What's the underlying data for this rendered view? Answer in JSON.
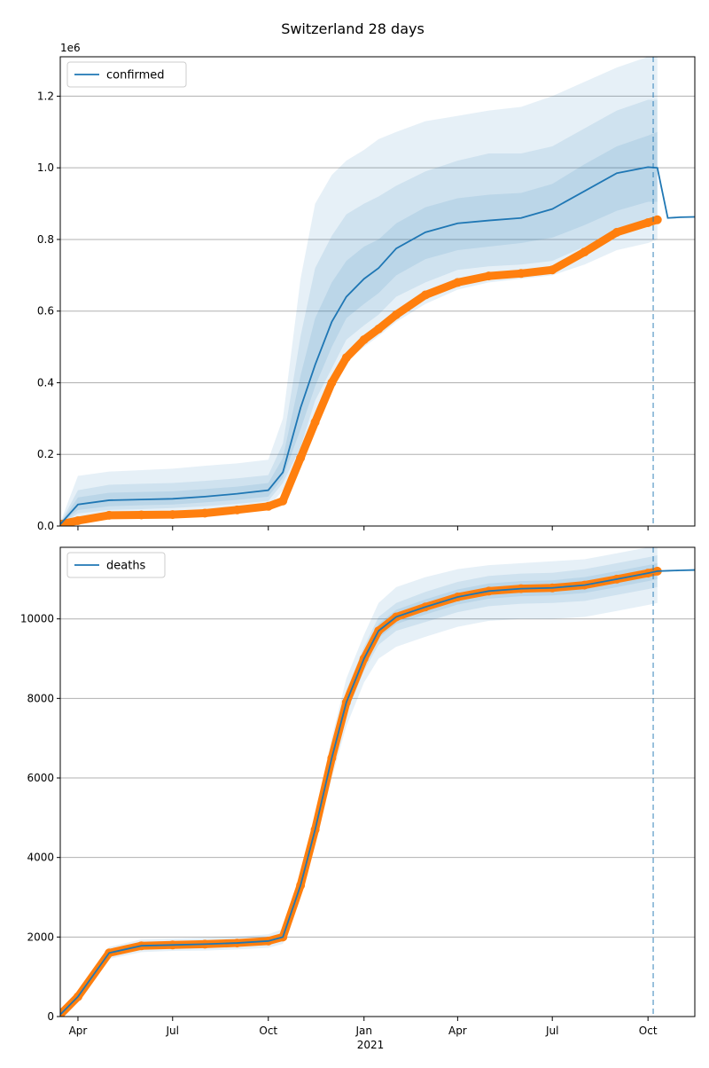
{
  "chart_data": {
    "title": "Switzerland 28 days",
    "x_dates": [
      "2020-03-15",
      "2020-04-01",
      "2020-05-01",
      "2020-06-01",
      "2020-07-01",
      "2020-08-01",
      "2020-09-01",
      "2020-10-01",
      "2020-10-15",
      "2020-11-01",
      "2020-11-15",
      "2020-12-01",
      "2020-12-15",
      "2021-01-01",
      "2021-01-15",
      "2021-02-01",
      "2021-03-01",
      "2021-04-01",
      "2021-05-01",
      "2021-06-01",
      "2021-07-01",
      "2021-08-01",
      "2021-09-01",
      "2021-10-01",
      "2021-10-10",
      "2021-10-20",
      "2021-11-01",
      "2021-11-15"
    ],
    "x_ticks": [
      {
        "date": "2020-04-01",
        "label": "Apr"
      },
      {
        "date": "2020-07-01",
        "label": "Jul"
      },
      {
        "date": "2020-10-01",
        "label": "Oct"
      },
      {
        "date": "2021-01-01",
        "label": "Jan"
      },
      {
        "date": "2021-04-01",
        "label": "Apr"
      },
      {
        "date": "2021-07-01",
        "label": "Jul"
      },
      {
        "date": "2021-10-01",
        "label": "Oct"
      }
    ],
    "x_year_label": "2021",
    "xlim": [
      "2020-03-15",
      "2021-11-15"
    ],
    "forecast_date": "2021-10-06",
    "colors": {
      "model": "#1f77b4",
      "observed": "#ff7f0e",
      "band": "#1f77b4",
      "grid": "#b0b0b0"
    },
    "panels": [
      {
        "type": "line",
        "legend": "confirmed",
        "legend_position": "upper-left",
        "scale_label": "1e6",
        "ylim": [
          0,
          1.31
        ],
        "yticks": [
          {
            "value": 0,
            "label": "0.0"
          },
          {
            "value": 0.2,
            "label": "0.2"
          },
          {
            "value": 0.4,
            "label": "0.4"
          },
          {
            "value": 0.6,
            "label": "0.6"
          },
          {
            "value": 0.8,
            "label": "0.8"
          },
          {
            "value": 1.0,
            "label": "1.0"
          },
          {
            "value": 1.2,
            "label": "1.2"
          }
        ],
        "observed": [
          0.005,
          0.015,
          0.03,
          0.031,
          0.032,
          0.036,
          0.045,
          0.055,
          0.07,
          0.19,
          0.29,
          0.4,
          0.47,
          0.52,
          0.55,
          0.59,
          0.645,
          0.68,
          0.698,
          0.705,
          0.715,
          0.765,
          0.82,
          0.847,
          0.855,
          null,
          null,
          null
        ],
        "model": [
          0.005,
          0.06,
          0.072,
          0.074,
          0.076,
          0.082,
          0.09,
          0.1,
          0.15,
          0.33,
          0.45,
          0.57,
          0.64,
          0.69,
          0.72,
          0.775,
          0.82,
          0.845,
          0.853,
          0.86,
          0.885,
          0.935,
          0.985,
          1.002,
          1.0,
          0.86,
          0.862,
          0.863
        ],
        "bands": [
          {
            "lo": [
              0.005,
              0.02,
              0.03,
              0.032,
              0.035,
              0.04,
              0.045,
              0.052,
              0.1,
              0.19,
              0.31,
              0.4,
              0.46,
              0.5,
              0.53,
              0.57,
              0.62,
              0.66,
              0.68,
              0.69,
              0.7,
              0.73,
              0.77,
              0.79,
              0.8,
              null,
              null,
              null
            ],
            "hi": [
              0.01,
              0.14,
              0.152,
              0.156,
              0.16,
              0.168,
              0.175,
              0.185,
              0.3,
              0.69,
              0.9,
              0.98,
              1.02,
              1.05,
              1.08,
              1.1,
              1.13,
              1.145,
              1.16,
              1.17,
              1.2,
              1.24,
              1.28,
              1.31,
              1.31,
              null,
              null,
              null
            ]
          },
          {
            "lo": [
              0.005,
              0.035,
              0.045,
              0.047,
              0.05,
              0.055,
              0.062,
              0.07,
              0.12,
              0.22,
              0.35,
              0.44,
              0.52,
              0.56,
              0.59,
              0.64,
              0.68,
              0.715,
              0.725,
              0.73,
              0.74,
              0.78,
              0.82,
              0.845,
              0.85,
              null,
              null,
              null
            ],
            "hi": [
              0.008,
              0.1,
              0.115,
              0.118,
              0.12,
              0.126,
              0.133,
              0.142,
              0.23,
              0.53,
              0.72,
              0.81,
              0.87,
              0.9,
              0.92,
              0.95,
              0.99,
              1.02,
              1.04,
              1.04,
              1.06,
              1.11,
              1.16,
              1.19,
              1.19,
              null,
              null,
              null
            ]
          },
          {
            "lo": [
              0.005,
              0.045,
              0.055,
              0.058,
              0.06,
              0.066,
              0.073,
              0.082,
              0.135,
              0.27,
              0.39,
              0.5,
              0.58,
              0.62,
              0.65,
              0.7,
              0.745,
              0.77,
              0.78,
              0.79,
              0.805,
              0.84,
              0.88,
              0.905,
              0.905,
              null,
              null,
              null
            ],
            "hi": [
              0.007,
              0.08,
              0.093,
              0.095,
              0.097,
              0.103,
              0.11,
              0.12,
              0.19,
              0.42,
              0.58,
              0.68,
              0.74,
              0.78,
              0.8,
              0.845,
              0.89,
              0.915,
              0.925,
              0.93,
              0.955,
              1.01,
              1.06,
              1.09,
              1.1,
              null,
              null,
              null
            ]
          }
        ]
      },
      {
        "type": "line",
        "legend": "deaths",
        "legend_position": "upper-left",
        "scale_label": "",
        "ylim": [
          0,
          11800
        ],
        "yticks": [
          {
            "value": 0,
            "label": "0"
          },
          {
            "value": 2000,
            "label": "2000"
          },
          {
            "value": 4000,
            "label": "4000"
          },
          {
            "value": 6000,
            "label": "6000"
          },
          {
            "value": 8000,
            "label": "8000"
          },
          {
            "value": 10000,
            "label": "10000"
          }
        ],
        "observed": [
          50,
          500,
          1600,
          1780,
          1800,
          1820,
          1850,
          1900,
          2000,
          3300,
          4700,
          6500,
          7900,
          9000,
          9700,
          10050,
          10300,
          10550,
          10700,
          10760,
          10780,
          10850,
          11000,
          11150,
          11200,
          null,
          null,
          null
        ],
        "model": [
          50,
          500,
          1600,
          1780,
          1800,
          1820,
          1850,
          1900,
          2000,
          3300,
          4700,
          6500,
          7900,
          9000,
          9700,
          10050,
          10300,
          10550,
          10700,
          10760,
          10780,
          10850,
          11000,
          11150,
          11200,
          11210,
          11220,
          11230
        ],
        "bands": [
          {
            "lo": [
              40,
              420,
              1450,
              1620,
              1650,
              1660,
              1690,
              1730,
              1830,
              3000,
              4300,
              6000,
              7300,
              8400,
              9000,
              9300,
              9550,
              9800,
              9950,
              10000,
              10000,
              10050,
              10200,
              10350,
              10400,
              null,
              null,
              null
            ],
            "hi": [
              60,
              580,
              1750,
              1940,
              1960,
              1980,
              2010,
              2070,
              2200,
              3600,
              5100,
              7000,
              8500,
              9600,
              10400,
              10800,
              11050,
              11250,
              11350,
              11400,
              11450,
              11500,
              11650,
              11800,
              11800,
              null,
              null,
              null
            ]
          },
          {
            "lo": [
              45,
              460,
              1520,
              1700,
              1720,
              1740,
              1770,
              1810,
              1910,
              3150,
              4500,
              6250,
              7600,
              8700,
              9350,
              9700,
              9920,
              10170,
              10320,
              10380,
              10400,
              10450,
              10600,
              10750,
              10800,
              null,
              null,
              null
            ],
            "hi": [
              55,
              540,
              1680,
              1860,
              1880,
              1900,
              1930,
              1990,
              2090,
              3450,
              4900,
              6750,
              8200,
              9300,
              10050,
              10400,
              10680,
              10930,
              11080,
              11140,
              11160,
              11250,
              11400,
              11550,
              11600,
              null,
              null,
              null
            ]
          },
          {
            "lo": [
              48,
              480,
              1560,
              1740,
              1760,
              1780,
              1810,
              1850,
              1950,
              3220,
              4600,
              6380,
              7750,
              8850,
              9520,
              9870,
              10110,
              10360,
              10510,
              10570,
              10590,
              10650,
              10800,
              10950,
              11000,
              null,
              null,
              null
            ],
            "hi": [
              52,
              520,
              1640,
              1820,
              1840,
              1860,
              1890,
              1950,
              2050,
              3380,
              4800,
              6620,
              8050,
              9150,
              9880,
              10230,
              10490,
              10740,
              10890,
              10950,
              10970,
              11050,
              11200,
              11350,
              11400,
              null,
              null,
              null
            ]
          }
        ]
      }
    ]
  }
}
